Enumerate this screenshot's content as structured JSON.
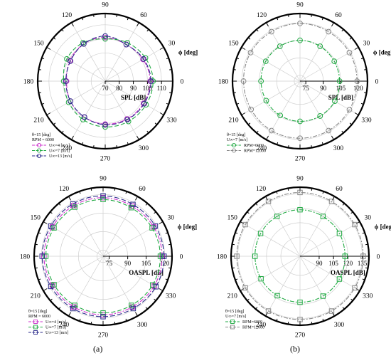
{
  "captions": [
    "(a)",
    "(b)"
  ],
  "chart_data": [
    {
      "type": "polar-line",
      "radial_label": "SPL [dB]",
      "angle_label": "ϕ [deg]",
      "r_range": [
        70,
        118
      ],
      "r_ticks": [
        70,
        80,
        90,
        100,
        110
      ],
      "angle_ticks": [
        0,
        30,
        60,
        90,
        120,
        150,
        180,
        210,
        240,
        270,
        300,
        330
      ],
      "legend_header": [
        "θ=15 [deg]",
        "RPM = 6000"
      ],
      "series": [
        {
          "name": "U∞=4 [m/s]",
          "color": "#cc33cc",
          "dash": "6,2,2,2",
          "marker": "circle",
          "angles": [
            0,
            30,
            60,
            90,
            120,
            150,
            180,
            210,
            240,
            270,
            300,
            330
          ],
          "values": [
            102,
            101,
            100,
            101,
            100.5,
            99,
            97.5,
            98.5,
            99.5,
            100.5,
            101,
            101.5
          ]
        },
        {
          "name": "U∞=7 [m/s]",
          "color": "#22aa44",
          "dash": "6,3",
          "marker": "circle",
          "angles": [
            0,
            30,
            60,
            90,
            120,
            150,
            180,
            210,
            240,
            270,
            300,
            330
          ],
          "values": [
            104,
            103,
            101.5,
            100,
            101.5,
            101.5,
            99.5,
            100,
            101.5,
            102.5,
            103,
            103.5
          ]
        },
        {
          "name": "U∞=13 [m/s]",
          "color": "#2a2a8a",
          "dash": "7,3",
          "marker": "circle",
          "angles": [
            0,
            30,
            60,
            90,
            120,
            150,
            180,
            210,
            240,
            270,
            300,
            330
          ],
          "values": [
            102.5,
            101.5,
            100,
            102,
            100.5,
            98.5,
            98,
            98.5,
            99.5,
            101,
            101.5,
            102
          ]
        }
      ]
    },
    {
      "type": "polar-line",
      "radial_label": "SPL [dB]",
      "angle_label": "ϕ [deg]",
      "r_range": [
        70,
        128
      ],
      "r_ticks": [
        75,
        90,
        105,
        120
      ],
      "angle_ticks": [
        0,
        30,
        60,
        90,
        120,
        150,
        180,
        210,
        240,
        270,
        300,
        330
      ],
      "legend_header": [
        "θ=15 [deg]",
        "U∞=7 [m/s]"
      ],
      "series": [
        {
          "name": "RPM=6000",
          "color": "#22aa44",
          "dash": "6,2,2,2",
          "marker": "circle",
          "angles": [
            0,
            30,
            60,
            90,
            120,
            150,
            180,
            210,
            240,
            270,
            300,
            330
          ],
          "values": [
            104,
            104,
            104.5,
            105,
            104.5,
            104,
            103.5,
            103.5,
            104,
            104.5,
            104.5,
            104.5
          ]
        },
        {
          "name": "RPM=12000",
          "color": "#888888",
          "dash": "6,2,2,2",
          "marker": "circle",
          "angles": [
            0,
            30,
            60,
            90,
            120,
            150,
            180,
            210,
            240,
            270,
            300,
            330
          ],
          "values": [
            119,
            119,
            119,
            119.5,
            119,
            119,
            118.5,
            118.5,
            119,
            119,
            119,
            119
          ]
        }
      ]
    },
    {
      "type": "polar-line",
      "radial_label": "OASPL [dB]",
      "angle_label": "ϕ [deg]",
      "r_range": [
        70,
        126
      ],
      "r_ticks": [
        75,
        90,
        105,
        120
      ],
      "angle_ticks": [
        0,
        30,
        60,
        90,
        120,
        150,
        180,
        210,
        240,
        270,
        300,
        330
      ],
      "legend_header": [
        "θ=15 [deg]",
        "RPM = 6000"
      ],
      "series": [
        {
          "name": "U∞=4 [m/s]",
          "color": "#cc33cc",
          "dash": "6,2,2,2",
          "marker": "square",
          "angles": [
            0,
            30,
            60,
            90,
            120,
            150,
            180,
            210,
            240,
            270,
            300,
            330
          ],
          "values": [
            118,
            117.5,
            117,
            117.5,
            117.5,
            117.5,
            118,
            117.5,
            117.5,
            117.5,
            117.5,
            118
          ]
        },
        {
          "name": "U∞=7 [m/s]",
          "color": "#22aa44",
          "dash": "6,3",
          "marker": "square",
          "angles": [
            0,
            30,
            60,
            90,
            120,
            150,
            180,
            210,
            240,
            270,
            300,
            330
          ],
          "values": [
            116.5,
            116,
            115.5,
            116,
            116,
            116,
            116.5,
            116,
            116,
            116,
            116,
            116.5
          ]
        },
        {
          "name": "U∞=13 [m/s]",
          "color": "#2a2a8a",
          "dash": "7,3",
          "marker": "square",
          "angles": [
            0,
            30,
            60,
            90,
            120,
            150,
            180,
            210,
            240,
            270,
            300,
            330
          ],
          "values": [
            119.5,
            119,
            118.5,
            119,
            119,
            119,
            119.5,
            119,
            119,
            119,
            119,
            119.5
          ]
        }
      ]
    },
    {
      "type": "polar-line",
      "radial_label": "OASPL [dB]",
      "angle_label": "ϕ [deg]",
      "r_range": [
        70,
        142
      ],
      "r_ticks": [
        90,
        105,
        120,
        135
      ],
      "angle_ticks": [
        0,
        30,
        60,
        90,
        120,
        150,
        180,
        210,
        240,
        270,
        300,
        330
      ],
      "legend_header": [
        "θ=15 [deg]",
        "U∞=7 [m/s]"
      ],
      "series": [
        {
          "name": "RPM=6000",
          "color": "#22aa44",
          "dash": "6,2,2,2",
          "marker": "square",
          "angles": [
            0,
            30,
            60,
            90,
            120,
            150,
            180,
            210,
            240,
            270,
            300,
            330
          ],
          "values": [
            117,
            117.5,
            118,
            118.5,
            118,
            117.5,
            117,
            117,
            117.5,
            118,
            118,
            117.5
          ]
        },
        {
          "name": "RPM=12000",
          "color": "#888888",
          "dash": "6,2,2,2",
          "marker": "square",
          "angles": [
            0,
            30,
            60,
            90,
            120,
            150,
            180,
            210,
            240,
            270,
            300,
            330
          ],
          "values": [
            136,
            136,
            136,
            136.5,
            136,
            136,
            136,
            136,
            136,
            136,
            136,
            136
          ]
        }
      ]
    }
  ]
}
